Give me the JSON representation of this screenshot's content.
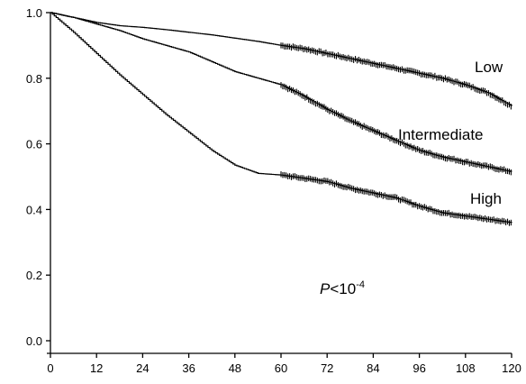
{
  "chart_data": {
    "type": "line",
    "title": "",
    "xlabel": "",
    "ylabel": "",
    "xlim": [
      0,
      120
    ],
    "ylim": [
      0,
      1.0
    ],
    "x_ticks": [
      0,
      12,
      24,
      36,
      48,
      60,
      72,
      84,
      96,
      108,
      120
    ],
    "y_ticks": [
      0.0,
      0.2,
      0.4,
      0.6,
      0.8,
      1.0
    ],
    "x_tick_labels": [
      "0",
      "12",
      "24",
      "36",
      "48",
      "60",
      "72",
      "84",
      "96",
      "108",
      "120"
    ],
    "y_tick_labels": [
      "0.0",
      "0.2",
      "0.4",
      "0.6",
      "0.8",
      "1.0"
    ],
    "grid": false,
    "censor_marks": true,
    "series": [
      {
        "name": "Low",
        "x": [
          0,
          6,
          12,
          18,
          24,
          30,
          36,
          42,
          48,
          54,
          60,
          66,
          72,
          78,
          84,
          90,
          96,
          102,
          108,
          114,
          120
        ],
        "y": [
          1.0,
          0.985,
          0.97,
          0.96,
          0.955,
          0.948,
          0.94,
          0.932,
          0.922,
          0.912,
          0.9,
          0.89,
          0.875,
          0.86,
          0.845,
          0.83,
          0.815,
          0.8,
          0.78,
          0.755,
          0.715
        ],
        "censor_from": 60
      },
      {
        "name": "Intermediate",
        "x": [
          0,
          6,
          12,
          18,
          24,
          30,
          36,
          42,
          48,
          54,
          60,
          66,
          72,
          78,
          84,
          90,
          96,
          102,
          108,
          114,
          120
        ],
        "y": [
          1.0,
          0.985,
          0.965,
          0.945,
          0.92,
          0.9,
          0.88,
          0.85,
          0.82,
          0.8,
          0.78,
          0.745,
          0.705,
          0.67,
          0.64,
          0.61,
          0.58,
          0.56,
          0.545,
          0.53,
          0.515
        ],
        "censor_from": 60
      },
      {
        "name": "High",
        "x": [
          0,
          6,
          12,
          18,
          24,
          30,
          36,
          42,
          48,
          54,
          60,
          66,
          72,
          78,
          84,
          90,
          96,
          102,
          108,
          114,
          120
        ],
        "y": [
          1.0,
          0.94,
          0.875,
          0.81,
          0.75,
          0.69,
          0.635,
          0.58,
          0.535,
          0.51,
          0.505,
          0.495,
          0.485,
          0.465,
          0.45,
          0.435,
          0.41,
          0.39,
          0.38,
          0.37,
          0.36
        ],
        "censor_from": 60
      }
    ],
    "annotation": {
      "prefix": "P",
      "middle": "<10",
      "superscript": "-4"
    }
  }
}
